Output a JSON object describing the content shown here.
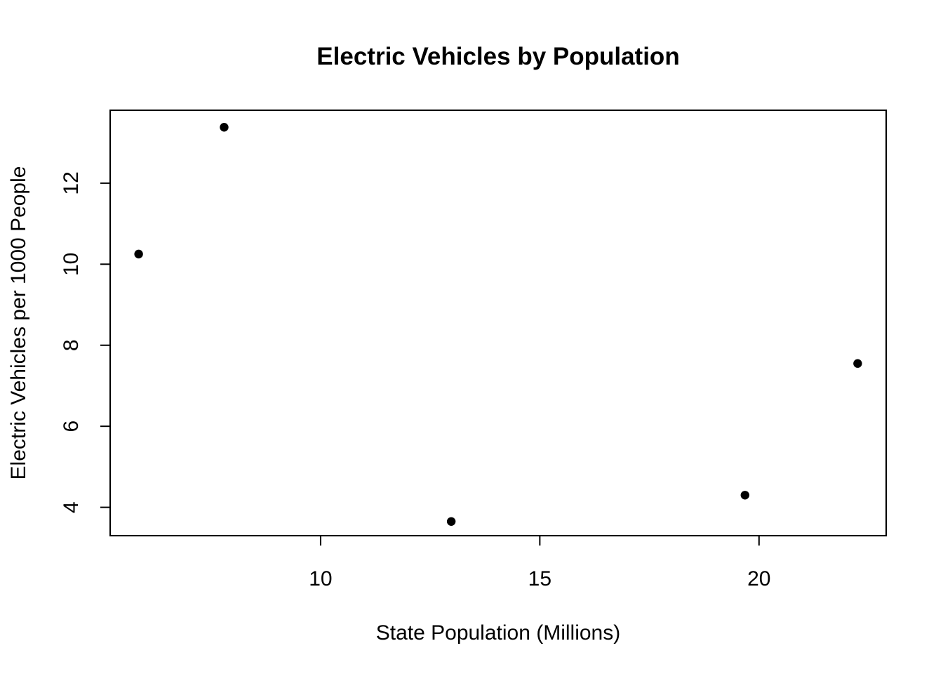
{
  "chart_data": {
    "type": "scatter",
    "title": "Electric Vehicles by Population",
    "xlabel": "State Population (Millions)",
    "ylabel": "Electric Vehicles per 1000 People",
    "xlim": [
      5.2,
      22.9
    ],
    "ylim": [
      3.3,
      13.8
    ],
    "xticks": [
      10,
      15,
      20
    ],
    "yticks": [
      4,
      6,
      8,
      10,
      12
    ],
    "x": [
      5.85,
      7.8,
      12.98,
      19.68,
      22.25
    ],
    "y": [
      10.25,
      13.38,
      3.65,
      4.3,
      7.55
    ],
    "grid": false,
    "marker_color": "#000000"
  }
}
